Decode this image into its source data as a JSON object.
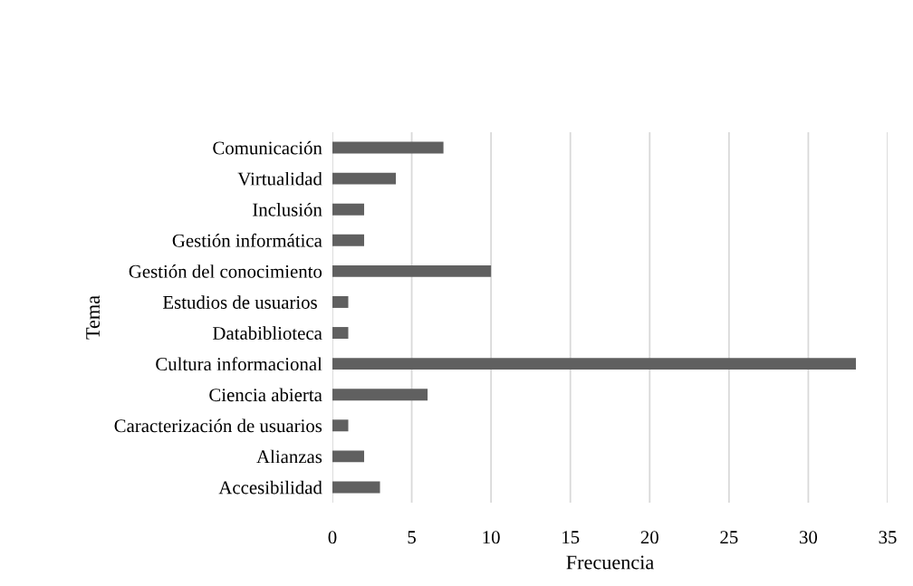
{
  "chart_data": {
    "type": "bar",
    "orientation": "horizontal",
    "xlabel": "Frecuencia",
    "ylabel": "Tema",
    "categories": [
      "Comunicación",
      "Virtualidad",
      "Inclusión",
      "Gestión informática",
      "Gestión del conocimiento",
      "Estudios de usuarios ",
      "Databiblioteca",
      "Cultura informacional",
      "Ciencia abierta",
      "Caracterización de usuarios",
      "Alianzas",
      "Accesibilidad"
    ],
    "values": [
      7,
      4,
      2,
      2,
      10,
      1,
      1,
      33,
      6,
      1,
      2,
      3
    ],
    "color": "#606060",
    "xlim": [
      0,
      35
    ],
    "xticks": [
      0,
      5,
      10,
      15,
      20,
      25,
      30,
      35
    ],
    "grid": "x"
  }
}
